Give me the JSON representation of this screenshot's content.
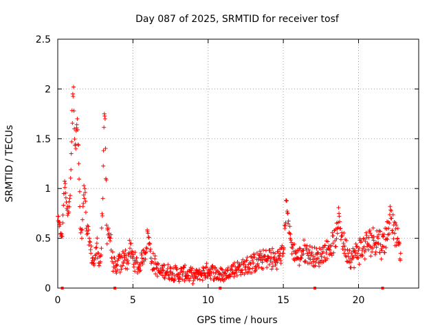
{
  "chart_data": {
    "type": "scatter",
    "title": "Day 087 of 2025, SRMTID for receiver tosf",
    "xlabel": "GPS time / hours",
    "ylabel": "SRMTID / TECUs",
    "xlim": [
      0,
      24
    ],
    "ylim": [
      0,
      2.5
    ],
    "grid": true,
    "marker": "plus",
    "x_ticks": [
      0,
      5,
      10,
      15,
      20
    ],
    "x_tick_labels": [
      "0",
      "5",
      "10",
      "15",
      "20"
    ],
    "y_ticks": [
      0,
      0.5,
      1,
      1.5,
      2,
      2.5
    ],
    "y_tick_labels": [
      "0",
      "0.5",
      "1",
      "1.5",
      "2",
      "2.5"
    ],
    "series": [
      {
        "name": "SRMTID",
        "color": "#ff0000",
        "x": [
          0.0,
          0.1,
          0.2,
          0.3,
          0.4,
          0.5,
          0.6,
          0.7,
          0.8,
          0.9,
          1.0,
          1.05,
          1.1,
          1.2,
          1.3,
          1.4,
          1.5,
          1.6,
          1.7,
          1.8,
          1.9,
          2.0,
          2.1,
          2.2,
          2.3,
          2.4,
          2.5,
          2.6,
          2.7,
          2.8,
          2.9,
          3.0,
          3.1,
          3.15,
          3.2,
          3.3,
          3.4,
          3.5,
          3.6,
          3.7,
          3.8,
          3.9,
          4.0,
          4.2,
          4.4,
          4.6,
          4.8,
          5.0,
          5.2,
          5.4,
          5.6,
          5.8,
          6.0,
          6.1,
          6.2,
          6.4,
          6.6,
          6.8,
          7.0,
          7.5,
          8.0,
          8.5,
          9.0,
          9.5,
          10.0,
          10.5,
          11.0,
          11.5,
          12.0,
          12.5,
          13.0,
          13.5,
          14.0,
          14.5,
          15.0,
          15.1,
          15.2,
          15.3,
          15.4,
          15.6,
          15.8,
          16.0,
          16.3,
          16.6,
          17.0,
          17.3,
          17.6,
          18.0,
          18.3,
          18.6,
          18.7,
          18.8,
          19.0,
          19.3,
          19.6,
          20.0,
          20.3,
          20.6,
          21.0,
          21.3,
          21.6,
          22.0,
          22.1,
          22.2,
          22.4,
          22.6,
          22.8
        ],
        "y": [
          0.72,
          0.62,
          0.55,
          0.52,
          0.95,
          1.05,
          0.8,
          0.75,
          0.9,
          1.35,
          1.95,
          2.02,
          1.6,
          1.4,
          1.7,
          1.25,
          0.6,
          0.5,
          0.85,
          1.0,
          0.6,
          0.55,
          0.5,
          0.35,
          0.3,
          0.25,
          0.3,
          0.45,
          0.35,
          0.25,
          0.4,
          0.9,
          1.75,
          1.7,
          1.1,
          0.6,
          0.55,
          0.5,
          0.3,
          0.25,
          0.2,
          0.15,
          0.28,
          0.22,
          0.35,
          0.25,
          0.4,
          0.3,
          0.25,
          0.2,
          0.3,
          0.35,
          0.55,
          0.45,
          0.3,
          0.25,
          0.2,
          0.15,
          0.18,
          0.16,
          0.14,
          0.15,
          0.12,
          0.14,
          0.18,
          0.15,
          0.12,
          0.18,
          0.2,
          0.22,
          0.25,
          0.28,
          0.3,
          0.28,
          0.35,
          0.6,
          0.88,
          0.75,
          0.55,
          0.4,
          0.35,
          0.3,
          0.38,
          0.35,
          0.32,
          0.3,
          0.35,
          0.4,
          0.45,
          0.55,
          0.75,
          0.6,
          0.45,
          0.35,
          0.3,
          0.38,
          0.4,
          0.45,
          0.48,
          0.5,
          0.42,
          0.6,
          0.82,
          0.7,
          0.55,
          0.5,
          0.35
        ],
        "band": [
          0.05,
          0.08,
          0.03,
          0.04,
          0.1,
          0.05,
          0.08,
          0.06,
          0.1,
          0.15,
          0.08,
          0.03,
          0.12,
          0.15,
          0.08,
          0.2,
          0.1,
          0.08,
          0.12,
          0.1,
          0.1,
          0.08,
          0.1,
          0.1,
          0.08,
          0.1,
          0.1,
          0.1,
          0.1,
          0.08,
          0.1,
          0.12,
          0.05,
          0.05,
          0.3,
          0.15,
          0.1,
          0.1,
          0.1,
          0.1,
          0.08,
          0.08,
          0.1,
          0.1,
          0.1,
          0.1,
          0.1,
          0.1,
          0.1,
          0.08,
          0.08,
          0.1,
          0.08,
          0.1,
          0.1,
          0.1,
          0.08,
          0.06,
          0.08,
          0.08,
          0.08,
          0.08,
          0.06,
          0.08,
          0.08,
          0.08,
          0.06,
          0.08,
          0.08,
          0.1,
          0.1,
          0.1,
          0.12,
          0.1,
          0.1,
          0.1,
          0.05,
          0.1,
          0.1,
          0.1,
          0.1,
          0.1,
          0.12,
          0.1,
          0.1,
          0.1,
          0.1,
          0.12,
          0.12,
          0.12,
          0.1,
          0.12,
          0.12,
          0.12,
          0.12,
          0.15,
          0.15,
          0.15,
          0.15,
          0.15,
          0.15,
          0.12,
          0.06,
          0.12,
          0.12,
          0.12,
          0.1
        ]
      }
    ],
    "axis_markers_hours": [
      0.3,
      3.8,
      10.8,
      17.1,
      21.6
    ]
  }
}
